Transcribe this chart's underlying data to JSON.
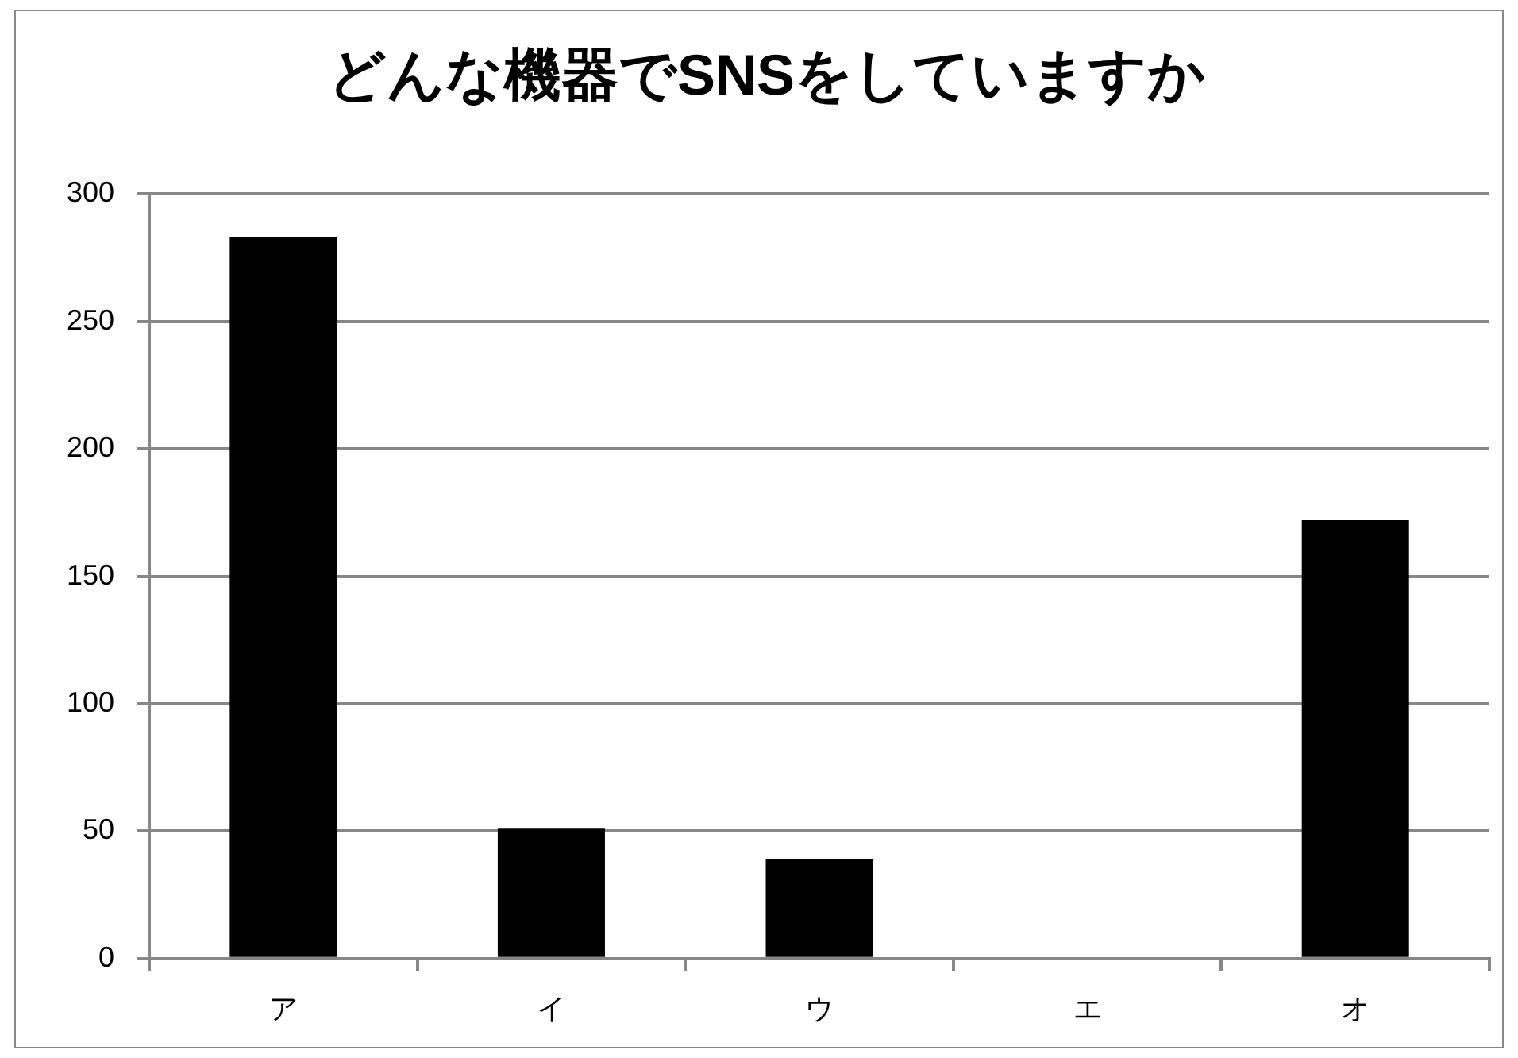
{
  "chart_data": {
    "type": "bar",
    "title": "どんな機器でSNSをしていますか",
    "categories": [
      "ア",
      "イ",
      "ウ",
      "エ",
      "オ"
    ],
    "values": [
      283,
      51,
      39,
      0,
      172
    ],
    "color": "#000000",
    "ylim": [
      0,
      300
    ],
    "yticks": [
      0,
      50,
      100,
      150,
      200,
      250,
      300
    ],
    "grid": "y"
  }
}
